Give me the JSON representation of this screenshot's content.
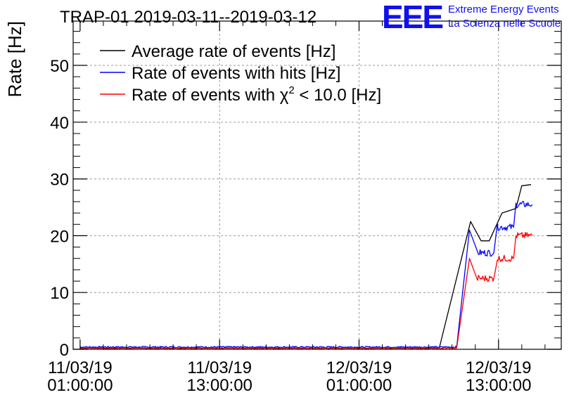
{
  "chart_data": {
    "type": "line",
    "title": "TRAP-01 2019-03-11--2019-03-12",
    "ylabel": "Rate [Hz]",
    "xlabel": "",
    "ylim": [
      0,
      57.8
    ],
    "xlim_hours_from_2019_03_11_01_00": [
      -0.6,
      41.4
    ],
    "grid": true,
    "legend_position": "top-left",
    "x_ticks": [
      {
        "hours": 0,
        "label_date": "11/03/19",
        "label_time": "01:00:00"
      },
      {
        "hours": 12,
        "label_date": "11/03/19",
        "label_time": "13:00:00"
      },
      {
        "hours": 24,
        "label_date": "12/03/19",
        "label_time": "01:00:00"
      },
      {
        "hours": 36,
        "label_date": "12/03/19",
        "label_time": "13:00:00"
      }
    ],
    "y_ticks": [
      0,
      10,
      20,
      30,
      40,
      50
    ],
    "series": [
      {
        "name": "Average rate of events [Hz]",
        "color": "#000000",
        "noise": 0,
        "points": [
          [
            0,
            0.2
          ],
          [
            30.9,
            0.2
          ],
          [
            33.6,
            22.5
          ],
          [
            34.5,
            19.1
          ],
          [
            35.2,
            19.1
          ],
          [
            36.3,
            24.0
          ],
          [
            37.5,
            24.8
          ],
          [
            38.0,
            28.8
          ],
          [
            38.8,
            29.0
          ]
        ]
      },
      {
        "name": "Rate of events with hits [Hz]",
        "color": "#0000ff",
        "noise": 0.6,
        "points": [
          [
            0,
            0.4
          ],
          [
            32.4,
            0.4
          ],
          [
            33.5,
            21.0
          ],
          [
            34.2,
            17.0
          ],
          [
            35.6,
            17.0
          ],
          [
            35.9,
            21.5
          ],
          [
            37.3,
            21.5
          ],
          [
            37.5,
            25.5
          ],
          [
            38.9,
            25.5
          ]
        ]
      },
      {
        "name": "Rate of events with χ² < 10.0 [Hz]",
        "color": "#ff0000",
        "noise": 0.6,
        "points": [
          [
            0,
            0.2
          ],
          [
            32.4,
            0.2
          ],
          [
            33.5,
            16.0
          ],
          [
            34.2,
            12.5
          ],
          [
            35.6,
            12.5
          ],
          [
            35.9,
            16.0
          ],
          [
            37.3,
            16.0
          ],
          [
            37.5,
            20.0
          ],
          [
            38.9,
            20.0
          ]
        ]
      }
    ]
  },
  "legend": {
    "entry_average": "Average rate of events [Hz]",
    "entry_hits": "Rate of events with hits [Hz]",
    "entry_chi_prefix": "Rate of events with χ",
    "entry_chi_sup": "2",
    "entry_chi_suffix": " < 10.0 [Hz]"
  },
  "logo": {
    "mark": "EEE",
    "line1": "Extreme Energy Events",
    "line2": "La Scienza nelle Scuole",
    "color": "#1010ee"
  }
}
